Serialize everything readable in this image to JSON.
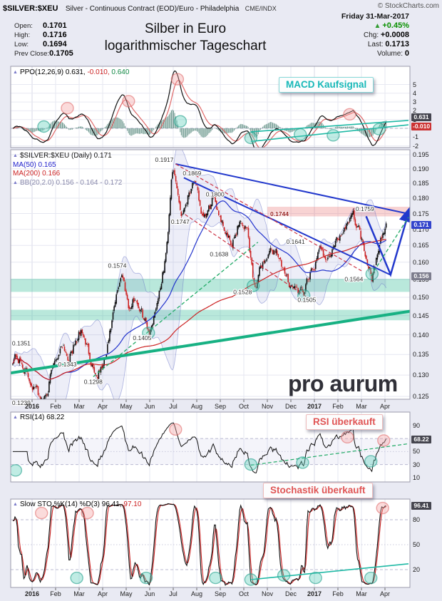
{
  "page": {
    "bg": "#e9eaf3"
  },
  "header": {
    "symbol": "$SILVER:$XEU",
    "description": "Silver - Continuous Contract (EOD)/Euro - Philadelphia",
    "exchange": "CME/INDX",
    "copyright": "© StockCharts.com",
    "date": "Friday 31-Mar-2017",
    "title_line1": "Silber in Euro",
    "title_line2": "logarithmischer Tageschart",
    "quote": {
      "open_label": "Open:",
      "open": "0.1701",
      "high_label": "High:",
      "high": "0.1716",
      "low_label": "Low:",
      "low": "0.1694",
      "prev_close_label": "Prev Close:",
      "prev_close": "0.1705",
      "up_arrow": "▲",
      "pct_change": "+0.45%",
      "chg_label": "Chg:",
      "chg": "+0.0008",
      "last_label": "Last:",
      "last": "0.1713",
      "volume_label": "Volume:",
      "volume": "0"
    }
  },
  "ppo": {
    "legend_name": "PPO(12,26,9)",
    "v1": "0.631,",
    "v2": "-0.010,",
    "v3": "0.640",
    "axis_ticks": [
      "5",
      "4",
      "3",
      "2",
      "1",
      "0",
      "-1",
      "-2"
    ],
    "boxes": [
      {
        "text": "0.631",
        "bg": "#45454f",
        "v": 0.631
      },
      {
        "text": "-0.010",
        "bg": "#cc3333",
        "v": -0.01
      }
    ],
    "annotation": "MACD Kaufsignal"
  },
  "main": {
    "legend_symbol": "$SILVER:$XEU (Daily) 0.171",
    "legend_ma50": "MA(50) 0.165",
    "legend_ma200": "MA(200) 0.166",
    "legend_bb": "BB(20,2.0) 0.156 - 0.164 - 0.172",
    "axis_ticks": [
      "0.195",
      "0.190",
      "0.185",
      "0.180",
      "0.175",
      "0.170",
      "0.165",
      "0.160",
      "0.155",
      "0.150",
      "0.145",
      "0.140",
      "0.135",
      "0.130",
      "0.125"
    ],
    "boxes": [
      {
        "text": "0.171",
        "bg": "#3344cc",
        "p": 0.1713
      },
      {
        "text": "0.156",
        "bg": "#7d7d8d",
        "p": 0.156
      }
    ],
    "watermark": "pro aurum"
  },
  "rsi": {
    "legend": "RSI(14) 68.22",
    "axis_ticks": [
      "90",
      "70",
      "50",
      "30",
      "10"
    ],
    "boxes": [
      {
        "text": "68.22",
        "bg": "#45454f",
        "v": 68.22
      }
    ],
    "annotation": "RSI überkauft"
  },
  "sto": {
    "legend_name": "Slow STO %K(14) %D(3)",
    "v1": "96.41,",
    "v2": "97.10",
    "axis_ticks": [
      "80",
      "50",
      "20"
    ],
    "boxes": [
      {
        "text": "96.41",
        "bg": "#45454f",
        "v": 96.41
      }
    ],
    "annotation": "Stochastik überkauft"
  },
  "xaxis": {
    "months": [
      "2016",
      "Feb",
      "Mar",
      "Apr",
      "May",
      "Jun",
      "Jul",
      "Aug",
      "Sep",
      "Oct",
      "Nov",
      "Dec",
      "2017",
      "Feb",
      "Mar",
      "Apr"
    ]
  },
  "chart_data": {
    "type": "candlestick",
    "symbol": "$SILVER:$XEU",
    "period": "daily",
    "date_range": "Jan 2016 - Apr 2017",
    "x_axis_months": [
      "2016",
      "Feb",
      "Mar",
      "Apr",
      "May",
      "Jun",
      "Jul",
      "Aug",
      "Sep",
      "Oct",
      "Nov",
      "Dec",
      "2017",
      "Feb",
      "Mar",
      "Apr"
    ],
    "y_axis": {
      "scale": "log",
      "min": 0.1228,
      "max": 0.1985,
      "tick_step": 0.005
    },
    "ohlc_last": {
      "open": 0.1701,
      "high": 0.1716,
      "low": 0.1694,
      "close": 0.1713,
      "prev_close": 0.1705,
      "change": 0.0008,
      "change_pct": 0.45
    },
    "close_anchors": [
      [
        -0.82,
        0.134
      ],
      [
        -0.7,
        0.1351
      ],
      [
        0.45,
        0.1239
      ],
      [
        1.3,
        0.1385
      ],
      [
        1.55,
        0.1343
      ],
      [
        2.1,
        0.141
      ],
      [
        2.75,
        0.1298
      ],
      [
        3.1,
        0.133
      ],
      [
        3.8,
        0.1574
      ],
      [
        4.15,
        0.147
      ],
      [
        4.4,
        0.15
      ],
      [
        5.0,
        0.1405
      ],
      [
        5.3,
        0.149
      ],
      [
        5.6,
        0.158
      ],
      [
        5.75,
        0.166
      ],
      [
        5.95,
        0.1917
      ],
      [
        6.35,
        0.1747
      ],
      [
        6.85,
        0.1869
      ],
      [
        7.3,
        0.172
      ],
      [
        7.75,
        0.18
      ],
      [
        8.5,
        0.1638
      ],
      [
        8.8,
        0.173
      ],
      [
        9.15,
        0.17
      ],
      [
        9.45,
        0.1528
      ],
      [
        9.8,
        0.16
      ],
      [
        10.4,
        0.1641
      ],
      [
        10.7,
        0.156
      ],
      [
        11.5,
        0.1505
      ],
      [
        12.3,
        0.164
      ],
      [
        12.6,
        0.161
      ],
      [
        13.6,
        0.1759
      ],
      [
        13.9,
        0.17
      ],
      [
        14.45,
        0.1564
      ],
      [
        15.05,
        0.1713
      ]
    ],
    "moving_averages": {
      "ma50": {
        "period": 50,
        "last": 0.165,
        "color": "#2233cc"
      },
      "ma200": {
        "period": 200,
        "last": 0.166,
        "color": "#cc2222"
      }
    },
    "bollinger": {
      "period": 20,
      "stdev": 2.0,
      "last_lower": 0.156,
      "last_mid": 0.164,
      "last_upper": 0.172
    },
    "ppo": {
      "fast": 12,
      "slow": 26,
      "signal": 9,
      "last_ppo": 0.631,
      "last_hist": -0.01,
      "last_signal": 0.64,
      "y_range": [
        -2.8,
        6.5
      ]
    },
    "rsi": {
      "period": 14,
      "last": 68.22,
      "overbought": 70,
      "oversold": 30
    },
    "stochastic": {
      "k": 14,
      "d": 3,
      "last_k": 96.41,
      "last_d": 97.1,
      "overbought": 80,
      "oversold": 20
    },
    "price_labels": [
      {
        "text": "0.1917",
        "m": 5.62,
        "p": 0.1932
      },
      {
        "text": "0.1869",
        "m": 6.8,
        "p": 0.1884
      },
      {
        "text": "0.1800",
        "m": 7.78,
        "p": 0.1813
      },
      {
        "text": "0.1759",
        "m": 14.15,
        "p": 0.1765
      },
      {
        "text": "0.1747",
        "m": 6.3,
        "p": 0.1724
      },
      {
        "text": "0.1641",
        "m": 11.2,
        "p": 0.1662
      },
      {
        "text": "0.1638",
        "m": 7.95,
        "p": 0.1624
      },
      {
        "text": "0.1574",
        "m": 3.62,
        "p": 0.159
      },
      {
        "text": "0.1564",
        "m": 13.68,
        "p": 0.1551
      },
      {
        "text": "0.1528",
        "m": 8.95,
        "p": 0.1515
      },
      {
        "text": "0.1505",
        "m": 11.68,
        "p": 0.1493
      },
      {
        "text": "0.1405",
        "m": 4.68,
        "p": 0.1392
      },
      {
        "text": "0.1351",
        "m": -0.85,
        "p": 0.1378,
        "anchor": "start"
      },
      {
        "text": "0.1343",
        "m": 1.5,
        "p": 0.1326
      },
      {
        "text": "0.1298",
        "m": 2.6,
        "p": 0.1284
      },
      {
        "text": "0.1239",
        "m": -0.85,
        "p": 0.1235,
        "anchor": "start"
      }
    ],
    "levels": {
      "resistance_band": {
        "m1": 10.0,
        "m2": 16.06,
        "p_low": 0.1741,
        "p_high": 0.1772,
        "label": "0.1744",
        "label_m": 10.12,
        "label_p": 0.1749,
        "color": "rgba(235,130,130,0.35)"
      },
      "support_bands": [
        {
          "p_low": 0.1515,
          "p_high": 0.1552
        },
        {
          "p_low": 0.1438,
          "p_high": 0.1466
        }
      ],
      "band_color": "rgba(70,195,160,0.38)"
    },
    "trendlines": {
      "main": [
        {
          "pts": [
            [
              -0.91,
              0.1305
            ],
            [
              16.06,
              0.1462
            ]
          ],
          "color": "#17b183",
          "w": 4
        },
        {
          "pts": [
            [
              6.1,
              0.1917
            ],
            [
              16.0,
              0.1749
            ]
          ],
          "color": "#2238cc",
          "w": 2
        },
        {
          "pts": [
            [
              6.45,
              0.1869
            ],
            [
              15.24,
              0.1563
            ]
          ],
          "color": "#2238cc",
          "w": 2
        },
        {
          "pts": [
            [
              14.2,
              0.1741
            ],
            [
              15.24,
              0.1564
            ],
            [
              16.0,
              0.1752
            ]
          ],
          "color": "#2238cc",
          "w": 2.5,
          "arrow": true
        },
        {
          "pts": [
            [
              6.1,
              0.1917
            ],
            [
              14.0,
              0.1575
            ]
          ],
          "color": "#cc3344",
          "w": 1.2,
          "dash": "5,3"
        },
        {
          "pts": [
            [
              6.5,
              0.1747
            ],
            [
              11.8,
              0.1495
            ]
          ],
          "color": "#cc3344",
          "w": 1.2,
          "dash": "5,3"
        },
        {
          "pts": [
            [
              2.6,
              0.1296
            ],
            [
              9.6,
              0.166
            ]
          ],
          "color": "#21aa66",
          "w": 1.3,
          "dash": "5,3"
        },
        {
          "pts": [
            [
              14.4,
              0.156
            ],
            [
              16.0,
              0.1738
            ]
          ],
          "color": "#21aa66",
          "w": 1.3,
          "dash": "5,3"
        }
      ],
      "ppo": [
        {
          "pts": [
            [
              9.3,
              -0.4
            ],
            [
              16.0,
              0.9
            ]
          ],
          "color": "#1fb9a5",
          "w": 1.6
        },
        {
          "pts": [
            [
              9.3,
              -1.5
            ],
            [
              16.0,
              0.4
            ]
          ],
          "color": "#1fb9a5",
          "w": 1.6
        }
      ],
      "rsi": [
        {
          "pts": [
            [
              9.3,
              29
            ],
            [
              16.0,
              62
            ]
          ],
          "color": "#21aa66",
          "w": 1.2,
          "dash": "5,3"
        }
      ],
      "sto": [
        {
          "pts": [
            [
              9.3,
              8
            ],
            [
              16.0,
              27
            ]
          ],
          "color": "#1fb9a5",
          "w": 1.6
        }
      ]
    },
    "highlights": {
      "teal_color": "#23a08c",
      "pink_color": "#e06e6e",
      "main_teal": [
        [
          4.95,
          0.1405
        ],
        [
          9.4,
          0.1532
        ],
        [
          11.55,
          0.1505
        ],
        [
          14.45,
          0.1566
        ]
      ],
      "ppo_teal": [
        [
          0.5,
          0.2
        ],
        [
          6.3,
          0.8
        ],
        [
          9.3,
          -1.1
        ],
        [
          11.4,
          -0.7
        ],
        [
          12.8,
          -0.8
        ],
        [
          14.75,
          -0.1
        ]
      ],
      "ppo_pink": [
        [
          1.5,
          2.3
        ],
        [
          4.1,
          3.1
        ],
        [
          6.18,
          5.6
        ],
        [
          13.5,
          1.6
        ]
      ],
      "rsi_teal": [
        [
          -0.7,
          21
        ],
        [
          9.3,
          30
        ],
        [
          11.5,
          33
        ],
        [
          14.4,
          35
        ]
      ],
      "rsi_pink": [
        [
          6.1,
          84
        ],
        [
          13.4,
          72
        ],
        [
          14.95,
          67
        ]
      ],
      "sto_teal": [
        [
          1.9,
          10
        ],
        [
          4.85,
          10
        ],
        [
          7.8,
          10
        ],
        [
          9.3,
          8
        ],
        [
          10.7,
          13
        ],
        [
          12.05,
          10
        ],
        [
          14.4,
          10
        ]
      ],
      "sto_pink": [
        [
          0.4,
          88
        ],
        [
          2.35,
          88
        ],
        [
          14.9,
          94
        ]
      ]
    }
  }
}
